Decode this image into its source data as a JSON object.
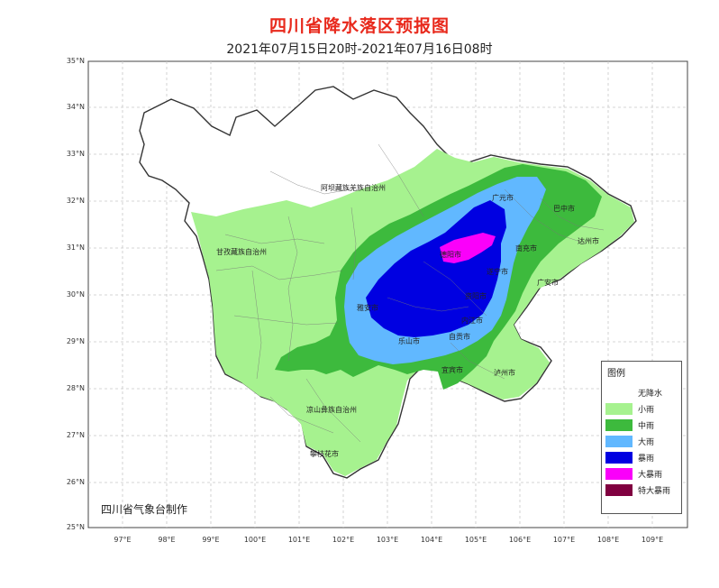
{
  "title": "四川省降水落区预报图",
  "subtitle": "2021年07月15日20时-2021年07月16日08时",
  "credit": "四川省气象台制作",
  "lat_labels": [
    "35°N",
    "34°N",
    "33°N",
    "32°N",
    "31°N",
    "30°N",
    "29°N",
    "28°N",
    "27°N",
    "26°N",
    "25°N"
  ],
  "lon_labels": [
    "97°E",
    "98°E",
    "99°E",
    "100°E",
    "101°E",
    "102°E",
    "103°E",
    "104°E",
    "105°E",
    "106°E",
    "107°E",
    "108°E",
    "109°E"
  ],
  "legend": {
    "title": "图例",
    "items": [
      {
        "label": "无降水",
        "color": "#ffffff"
      },
      {
        "label": "小雨",
        "color": "#a6f28f"
      },
      {
        "label": "中雨",
        "color": "#3dba3d"
      },
      {
        "label": "大雨",
        "color": "#61b8ff"
      },
      {
        "label": "暴雨",
        "color": "#0000e1"
      },
      {
        "label": "大暴雨",
        "color": "#fa00fa"
      },
      {
        "label": "特大暴雨",
        "color": "#800040"
      }
    ]
  },
  "places": [
    {
      "name": "阿坝藏族羌族自治州"
    },
    {
      "name": "甘孜藏族自治州"
    },
    {
      "name": "凉山彝族自治州"
    },
    {
      "name": "攀枝花市"
    },
    {
      "name": "广元市"
    },
    {
      "name": "巴中市"
    },
    {
      "name": "达州市"
    },
    {
      "name": "南充市"
    },
    {
      "name": "广安市"
    },
    {
      "name": "遂宁市"
    },
    {
      "name": "德阳市"
    },
    {
      "name": "资阳市"
    },
    {
      "name": "内江市"
    },
    {
      "name": "自贡市"
    },
    {
      "name": "乐山市"
    },
    {
      "name": "雅安市"
    },
    {
      "name": "宜宾市"
    },
    {
      "name": "泸州市"
    }
  ]
}
